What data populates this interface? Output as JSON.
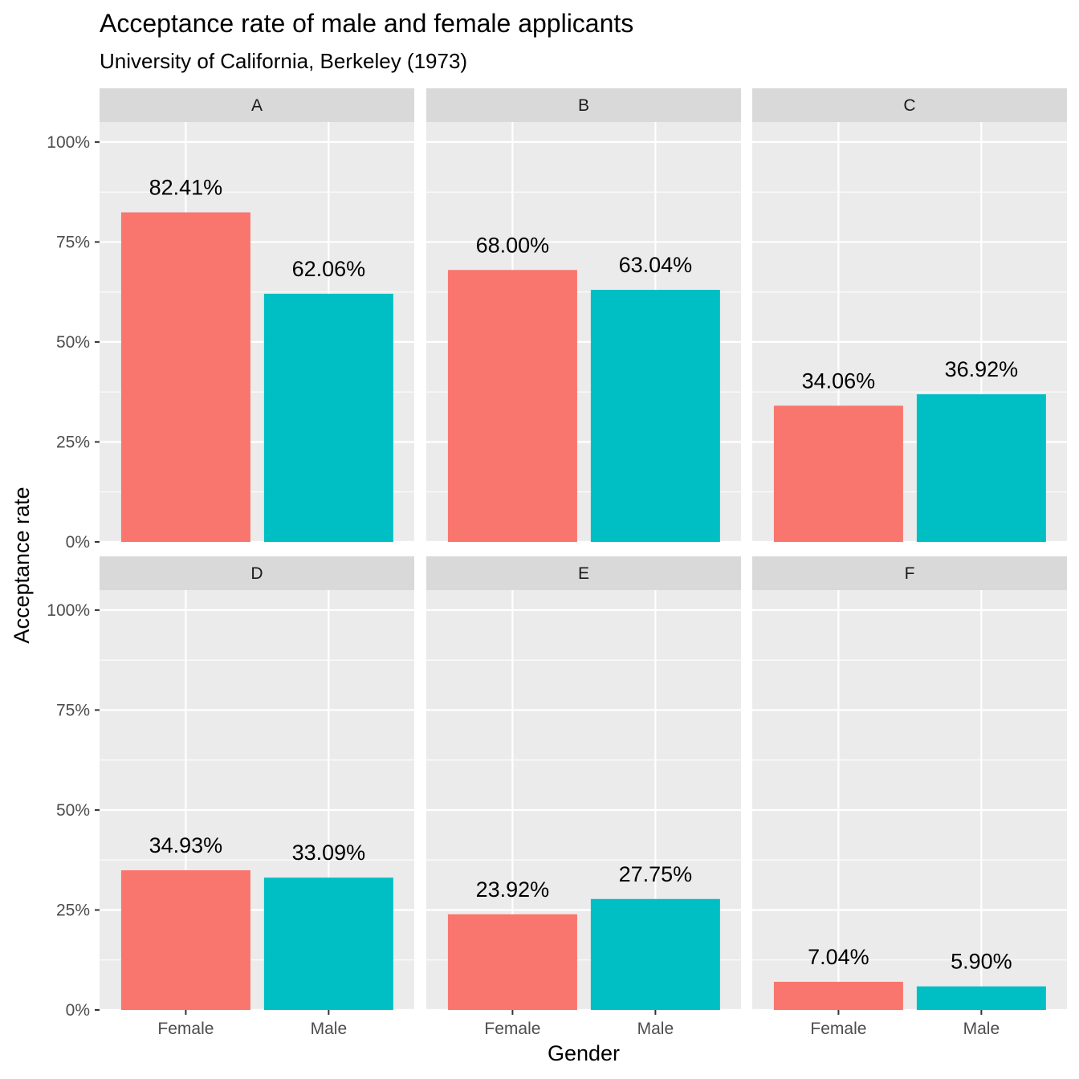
{
  "chart_data": {
    "type": "bar",
    "title": "Acceptance rate of male and female applicants",
    "subtitle": "University of California, Berkeley (1973)",
    "xlabel": "Gender",
    "ylabel": "Acceptance rate",
    "categories": [
      "Female",
      "Male"
    ],
    "ylim": [
      0,
      1.05
    ],
    "yticks": [
      0,
      0.25,
      0.5,
      0.75,
      1.0
    ],
    "ytick_labels": [
      "0%",
      "25%",
      "50%",
      "75%",
      "100%"
    ],
    "grid": true,
    "legend": "none",
    "colors": {
      "Female": "#F8766D",
      "Male": "#00BFC4"
    },
    "facets": [
      {
        "panel": "A",
        "values": [
          0.8241,
          0.6206
        ],
        "labels": [
          "82.41%",
          "62.06%"
        ]
      },
      {
        "panel": "B",
        "values": [
          0.68,
          0.6304
        ],
        "labels": [
          "68.00%",
          "63.04%"
        ]
      },
      {
        "panel": "C",
        "values": [
          0.3406,
          0.3692
        ],
        "labels": [
          "34.06%",
          "36.92%"
        ]
      },
      {
        "panel": "D",
        "values": [
          0.3493,
          0.3309
        ],
        "labels": [
          "34.93%",
          "33.09%"
        ]
      },
      {
        "panel": "E",
        "values": [
          0.2392,
          0.2775
        ],
        "labels": [
          "23.92%",
          "27.75%"
        ]
      },
      {
        "panel": "F",
        "values": [
          0.0704,
          0.059
        ],
        "labels": [
          "7.04%",
          "5.90%"
        ]
      }
    ]
  }
}
